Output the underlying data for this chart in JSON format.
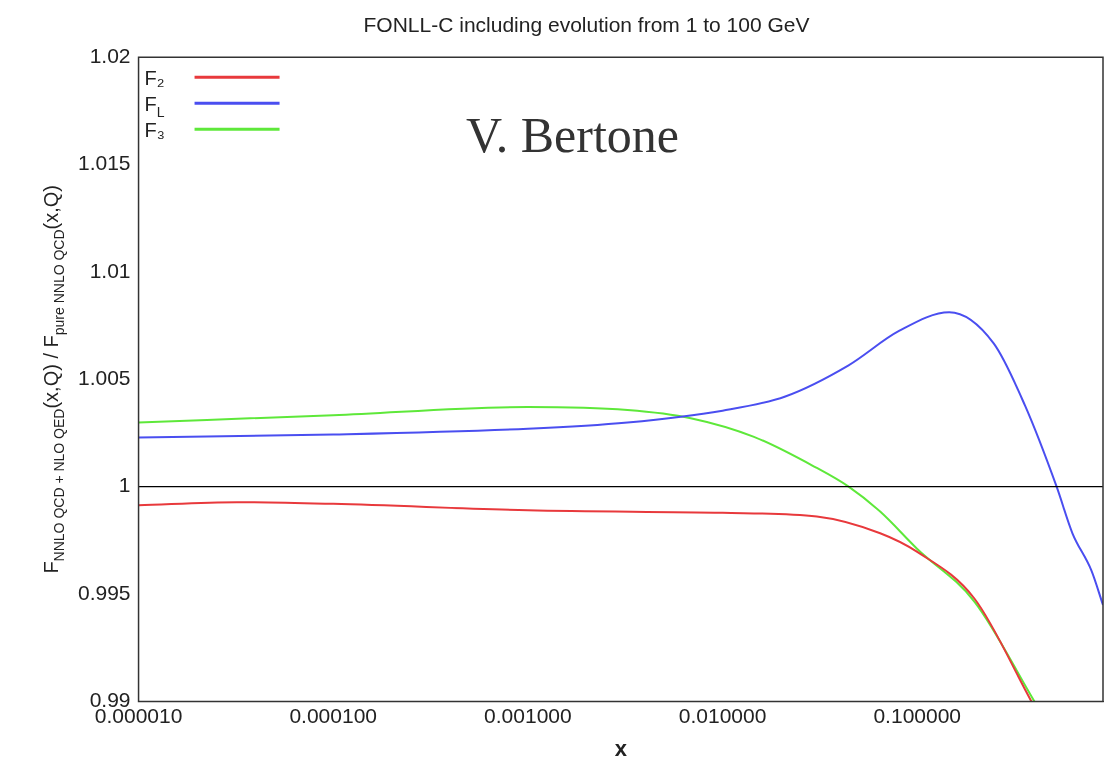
{
  "chart_data": {
    "type": "line",
    "title": "FONLL-C including evolution from 1 to 100 GeV",
    "xlabel": "x",
    "ylabel": "F$_{NNLO QCD + NLO QED}$(x,Q) / F$_{pure NNLO QCD}$(x,Q)",
    "log": "x",
    "xlim": [
      1e-05,
      0.9
    ],
    "xticks": [
      {
        "value": 1e-05,
        "label": "0.000010"
      },
      {
        "value": 0.0001,
        "label": "0.000100"
      },
      {
        "value": 0.001,
        "label": "0.001000"
      },
      {
        "value": 0.01,
        "label": "0.010000"
      },
      {
        "value": 0.1,
        "label": "0.100000"
      }
    ],
    "ylim": [
      0.99,
      1.02
    ],
    "yticks": [
      0.99,
      {
        "value": 0.995,
        "label": "0.995"
      },
      1,
      {
        "value": 1.005,
        "label": "1.005"
      },
      {
        "value": 1.01,
        "label": "1.01"
      },
      {
        "value": 1.015,
        "label": "1.015"
      },
      {
        "value": 1.02,
        "label": "1.02"
      }
    ],
    "grid": false,
    "legend": "top left",
    "marker": "none",
    "ref_lines": [
      {
        "axis": "y",
        "value": 1,
        "color": "#000000"
      }
    ],
    "annotations": [
      "V. Bertone"
    ],
    "series": [
      {
        "name": "F₂",
        "color": "#e8393c",
        "x": [
          1e-05,
          3.2e-05,
          0.0001,
          0.001,
          0.01,
          0.0305,
          0.0645,
          0.1,
          0.197,
          0.386
        ],
        "values": [
          0.99913,
          0.99928,
          0.9992,
          0.9989,
          0.99878,
          0.99861,
          0.99783,
          0.99696,
          0.99478,
          0.99
        ]
      },
      {
        "name": "F$_{L}$",
        "color": "#4a4ef0",
        "x": [
          1e-05,
          0.0001,
          0.001,
          0.00325,
          0.01,
          0.021,
          0.0444,
          0.0806,
          0.146,
          0.247,
          0.358,
          0.52,
          0.627,
          0.785,
          0.9
        ],
        "values": [
          1.00229,
          1.00243,
          1.0027,
          1.00299,
          1.00354,
          1.0042,
          1.00565,
          1.00725,
          1.00812,
          1.00667,
          1.00377,
          1.0,
          0.99783,
          0.99609,
          0.99449
        ]
      },
      {
        "name": "F₃",
        "color": "#5ee83a",
        "x": [
          1e-05,
          0.0001,
          0.001,
          0.00325,
          0.00686,
          0.0145,
          0.0305,
          0.0444,
          0.0645,
          0.1,
          0.197,
          0.4
        ],
        "values": [
          1.00299,
          1.00333,
          1.00371,
          1.00357,
          1.00319,
          1.00232,
          1.00087,
          1.0,
          0.99884,
          0.9971,
          0.99464,
          0.99
        ]
      }
    ]
  }
}
